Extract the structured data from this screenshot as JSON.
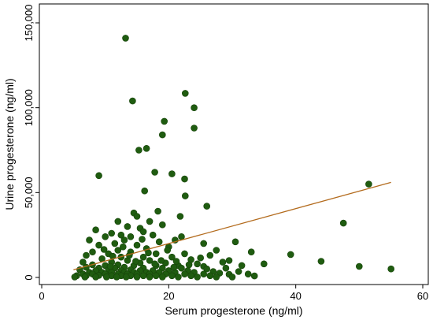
{
  "chart_data": {
    "type": "scatter",
    "xlabel": "Serum progesterone (ng/ml)",
    "ylabel": "Urine progesterone (ng/ml)",
    "xlim": [
      0,
      60
    ],
    "ylim": [
      0,
      150000
    ],
    "xticks": [
      0,
      20,
      40,
      60
    ],
    "yticks": [
      0,
      50000,
      100000,
      150000
    ],
    "xtick_labels": [
      "0",
      "20",
      "40",
      "60"
    ],
    "ytick_labels": [
      "0",
      "50,000",
      "100,000",
      "150,000"
    ],
    "grid": false,
    "legend": "none",
    "colors": {
      "point": "#1f5c10",
      "point_stroke": "#154208",
      "fit_line": "#b36b1d",
      "axis": "#000000"
    },
    "fit_line": {
      "x": [
        5,
        55
      ],
      "y": [
        4500,
        56000
      ]
    },
    "series": [
      {
        "points": [
          [
            13.2,
            141000
          ],
          [
            14.3,
            104000
          ],
          [
            22.6,
            108500
          ],
          [
            24.0,
            100000
          ],
          [
            19.3,
            92000
          ],
          [
            24.0,
            88000
          ],
          [
            19.0,
            84000
          ],
          [
            16.5,
            76000
          ],
          [
            15.3,
            75000
          ],
          [
            9.0,
            60000
          ],
          [
            17.8,
            62000
          ],
          [
            20.5,
            61000
          ],
          [
            22.5,
            58000
          ],
          [
            16.2,
            51000
          ],
          [
            22.6,
            48000
          ],
          [
            51.5,
            55000
          ],
          [
            26.0,
            42000
          ],
          [
            14.5,
            38000
          ],
          [
            18.3,
            39000
          ],
          [
            15.0,
            36000
          ],
          [
            21.8,
            36000
          ],
          [
            12.0,
            33000
          ],
          [
            17.0,
            33000
          ],
          [
            47.5,
            32000
          ],
          [
            13.5,
            30000
          ],
          [
            15.5,
            29000
          ],
          [
            19.0,
            31000
          ],
          [
            8.5,
            28000
          ],
          [
            11.0,
            26000
          ],
          [
            16.0,
            27000
          ],
          [
            10.0,
            24000
          ],
          [
            12.5,
            25000
          ],
          [
            14.0,
            24000
          ],
          [
            17.5,
            25000
          ],
          [
            22.0,
            24000
          ],
          [
            7.5,
            22000
          ],
          [
            13.0,
            22000
          ],
          [
            18.5,
            21000
          ],
          [
            21.0,
            22000
          ],
          [
            30.5,
            21000
          ],
          [
            25.5,
            20000
          ],
          [
            9.0,
            19000
          ],
          [
            11.5,
            20000
          ],
          [
            15.0,
            19000
          ],
          [
            20.0,
            18000
          ],
          [
            16.5,
            17000
          ],
          [
            12.0,
            16000
          ],
          [
            27.5,
            16000
          ],
          [
            33.0,
            15000
          ],
          [
            8.0,
            15000
          ],
          [
            10.5,
            14000
          ],
          [
            14.0,
            15000
          ],
          [
            18.0,
            14000
          ],
          [
            22.5,
            14000
          ],
          [
            26.5,
            13000
          ],
          [
            39.2,
            13500
          ],
          [
            7.0,
            13000
          ],
          [
            12.5,
            12000
          ],
          [
            16.0,
            12000
          ],
          [
            20.5,
            12000
          ],
          [
            9.5,
            11000
          ],
          [
            13.5,
            10000
          ],
          [
            17.0,
            10000
          ],
          [
            23.5,
            10500
          ],
          [
            29.5,
            10000
          ],
          [
            44.0,
            9500
          ],
          [
            6.5,
            9000
          ],
          [
            11.0,
            9000
          ],
          [
            15.5,
            8500
          ],
          [
            19.5,
            8500
          ],
          [
            24.5,
            8000
          ],
          [
            28.5,
            9000
          ],
          [
            35.0,
            8000
          ],
          [
            8.0,
            7500
          ],
          [
            10.0,
            7000
          ],
          [
            12.0,
            7500
          ],
          [
            14.5,
            7000
          ],
          [
            18.0,
            7000
          ],
          [
            21.5,
            7000
          ],
          [
            25.5,
            6500
          ],
          [
            31.5,
            7000
          ],
          [
            50.0,
            6500
          ],
          [
            7.0,
            6000
          ],
          [
            9.0,
            5500
          ],
          [
            11.5,
            5500
          ],
          [
            13.0,
            6000
          ],
          [
            16.0,
            5500
          ],
          [
            19.0,
            5500
          ],
          [
            22.0,
            5500
          ],
          [
            26.0,
            5000
          ],
          [
            29.0,
            5500
          ],
          [
            55.0,
            5000
          ],
          [
            6.0,
            4500
          ],
          [
            8.5,
            4000
          ],
          [
            10.5,
            4500
          ],
          [
            12.5,
            4000
          ],
          [
            14.0,
            4500
          ],
          [
            15.5,
            4000
          ],
          [
            17.5,
            4000
          ],
          [
            20.0,
            4000
          ],
          [
            23.0,
            4000
          ],
          [
            27.0,
            3500
          ],
          [
            31.0,
            3500
          ],
          [
            7.5,
            3000
          ],
          [
            9.5,
            3000
          ],
          [
            11.0,
            3000
          ],
          [
            13.0,
            3000
          ],
          [
            14.5,
            3000
          ],
          [
            16.5,
            3000
          ],
          [
            18.5,
            3000
          ],
          [
            21.0,
            3000
          ],
          [
            24.0,
            3000
          ],
          [
            28.0,
            2500
          ],
          [
            32.5,
            2000
          ],
          [
            6.5,
            2000
          ],
          [
            8.0,
            2000
          ],
          [
            10.0,
            2000
          ],
          [
            12.0,
            2000
          ],
          [
            13.5,
            2000
          ],
          [
            15.0,
            2000
          ],
          [
            17.0,
            2000
          ],
          [
            19.5,
            2000
          ],
          [
            22.5,
            2000
          ],
          [
            25.5,
            2000
          ],
          [
            29.5,
            1800
          ],
          [
            5.5,
            1000
          ],
          [
            7.0,
            1000
          ],
          [
            9.0,
            1200
          ],
          [
            11.0,
            1000
          ],
          [
            12.5,
            1000
          ],
          [
            14.0,
            1000
          ],
          [
            16.0,
            1000
          ],
          [
            18.0,
            1000
          ],
          [
            20.5,
            1000
          ],
          [
            23.5,
            1000
          ],
          [
            26.5,
            1000
          ],
          [
            33.5,
            900
          ],
          [
            5.2,
            300
          ],
          [
            6.8,
            300
          ],
          [
            8.5,
            300
          ],
          [
            10.2,
            300
          ],
          [
            11.8,
            300
          ],
          [
            13.3,
            300
          ],
          [
            15.0,
            300
          ],
          [
            17.0,
            300
          ],
          [
            19.0,
            300
          ],
          [
            21.5,
            300
          ],
          [
            24.5,
            300
          ],
          [
            27.5,
            300
          ],
          [
            30.0,
            300
          ],
          [
            9.8,
            16500
          ],
          [
            11.2,
            12500
          ],
          [
            13.8,
            13000
          ],
          [
            16.8,
            14500
          ],
          [
            19.8,
            16000
          ],
          [
            12.8,
            18000
          ],
          [
            15.8,
            22500
          ],
          [
            18.8,
            10000
          ],
          [
            21.2,
            9500
          ],
          [
            10.8,
            6500
          ],
          [
            14.8,
            9500
          ],
          [
            17.8,
            8000
          ],
          [
            20.8,
            6000
          ],
          [
            23.2,
            7500
          ],
          [
            25.0,
            11500
          ]
        ]
      }
    ]
  }
}
